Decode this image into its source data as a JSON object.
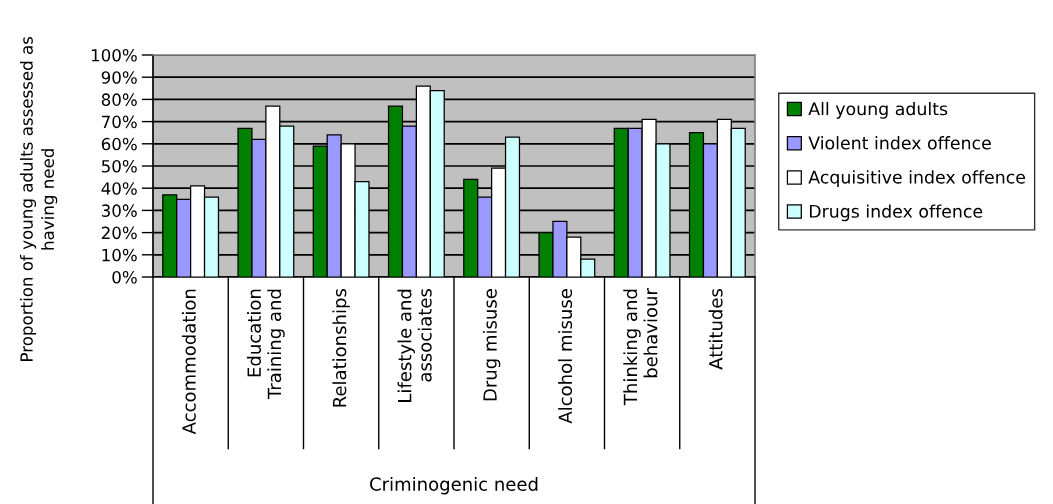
{
  "chart_data": {
    "type": "bar",
    "xlabel": "Criminogenic need",
    "ylabel": "Proportion of young adults assessed as\nhaving need",
    "categories": [
      "Accommodation",
      "Education\nTraining and",
      "Relationships",
      "Lifestyle and\nassociates",
      "Drug misuse",
      "Alcohol misuse",
      "Thinking and\nbehaviour",
      "Attitudes"
    ],
    "series": [
      {
        "name": "All young adults",
        "color": "#008000",
        "values": [
          37,
          67,
          59,
          77,
          44,
          20,
          67,
          65
        ]
      },
      {
        "name": "Violent index offence",
        "color": "#9999ff",
        "values": [
          35,
          62,
          64,
          68,
          36,
          25,
          67,
          60
        ]
      },
      {
        "name": "Acquisitive index offence",
        "color": "#ffffff",
        "values": [
          41,
          77,
          60,
          86,
          49,
          18,
          71,
          71
        ]
      },
      {
        "name": "Drugs index offence",
        "color": "#ccffff",
        "values": [
          36,
          68,
          43,
          84,
          63,
          8,
          60,
          67
        ]
      }
    ],
    "ylim": [
      0,
      100
    ],
    "yticks": [
      {
        "value": 0,
        "label": "0%"
      },
      {
        "value": 10,
        "label": "10%"
      },
      {
        "value": 20,
        "label": "20%"
      },
      {
        "value": 30,
        "label": "30%"
      },
      {
        "value": 40,
        "label": "40%"
      },
      {
        "value": 50,
        "label": "50%"
      },
      {
        "value": 60,
        "label": "60%"
      },
      {
        "value": 70,
        "label": "70%"
      },
      {
        "value": 80,
        "label": "80%"
      },
      {
        "value": 90,
        "label": "90%"
      },
      {
        "value": 100,
        "label": "100%"
      }
    ],
    "grid": "y",
    "legend": "right"
  }
}
